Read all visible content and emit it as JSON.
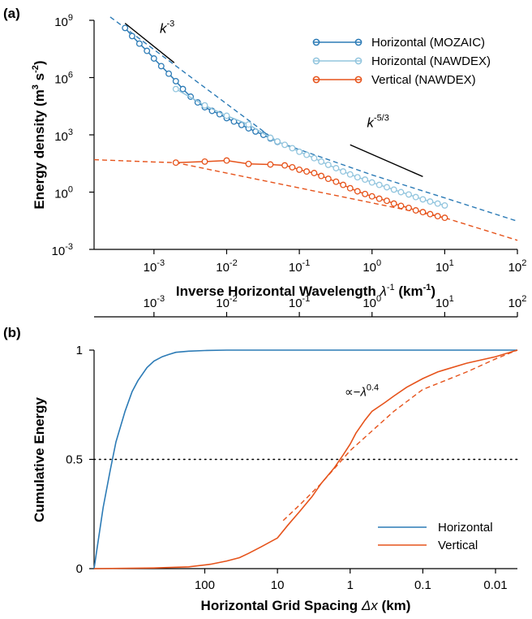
{
  "colors": {
    "mozaic": "#2c7bb6",
    "nawdex_h": "#92c5de",
    "nawdex_v": "#e6531b",
    "horizontal": "#2c7bb6",
    "vertical": "#e6531b"
  },
  "chart_data": [
    {
      "type": "line",
      "panel_label": "(a)",
      "xlabel_main": "Inverse Horizontal Wavelength ",
      "xlabel_sym": "λ",
      "xlabel_sup": "-1",
      "xlabel_unit": " (km",
      "xlabel_unit_sup": "-1",
      "xlabel_end": ")",
      "ylabel_main": "Energy density (m",
      "ylabel_sup1": "3",
      "ylabel_mid": " s",
      "ylabel_sup2": "-2",
      "ylabel_end": ")",
      "xscale": "log",
      "yscale": "log",
      "xlim": [
        0.00015,
        100
      ],
      "ylim": [
        0.001,
        1000000000
      ],
      "xticks": [
        {
          "base": "10",
          "exp": "-3",
          "v": 0.001
        },
        {
          "base": "10",
          "exp": "-2",
          "v": 0.01
        },
        {
          "base": "10",
          "exp": "-1",
          "v": 0.1
        },
        {
          "base": "10",
          "exp": "0",
          "v": 1
        },
        {
          "base": "10",
          "exp": "1",
          "v": 10
        },
        {
          "base": "10",
          "exp": "2",
          "v": 100
        }
      ],
      "yticks": [
        {
          "base": "10",
          "exp": "-3",
          "v": 0.001
        },
        {
          "base": "10",
          "exp": "0",
          "v": 1
        },
        {
          "base": "10",
          "exp": "3",
          "v": 1000
        },
        {
          "base": "10",
          "exp": "6",
          "v": 1000000
        },
        {
          "base": "10",
          "exp": "9",
          "v": 1000000000
        }
      ],
      "legend_position": "top-right",
      "series": [
        {
          "name": "Horizontal (MOZAIC)",
          "color": "#2c7bb6",
          "marker": "circle",
          "x": [
            0.0004,
            0.0005,
            0.00063,
            0.0008,
            0.001,
            0.00126,
            0.0016,
            0.002,
            0.0025,
            0.0032,
            0.004,
            0.005,
            0.0063,
            0.008,
            0.01,
            0.0126,
            0.016,
            0.02,
            0.025,
            0.032,
            0.04,
            0.05
          ],
          "y": [
            400000000,
            150000000,
            60000000,
            25000000,
            10000000,
            4000000,
            1600000,
            650000,
            250000,
            100000,
            50000,
            28000,
            18000,
            12000,
            7500,
            5000,
            3300,
            2200,
            1500,
            1000,
            650,
            430
          ]
        },
        {
          "name": "Horizontal (NAWDEX)",
          "color": "#92c5de",
          "marker": "circle",
          "x": [
            0.002,
            0.005,
            0.01,
            0.02,
            0.04,
            0.05,
            0.063,
            0.08,
            0.1,
            0.126,
            0.16,
            0.2,
            0.25,
            0.32,
            0.4,
            0.5,
            0.63,
            0.8,
            1.0,
            1.26,
            1.6,
            2.0,
            2.5,
            3.2,
            4.0,
            5.0,
            6.3,
            8.0,
            10.0
          ],
          "y": [
            250000,
            35000,
            10000,
            3500,
            700,
            450,
            300,
            200,
            130,
            90,
            60,
            40,
            27,
            18,
            12,
            8.5,
            6,
            4.5,
            3.2,
            2.4,
            1.8,
            1.35,
            1.0,
            0.75,
            0.55,
            0.42,
            0.32,
            0.25,
            0.2
          ]
        },
        {
          "name": "Vertical (NAWDEX)",
          "color": "#e6531b",
          "marker": "circle",
          "x": [
            0.002,
            0.005,
            0.01,
            0.02,
            0.04,
            0.063,
            0.08,
            0.1,
            0.126,
            0.16,
            0.2,
            0.25,
            0.32,
            0.4,
            0.5,
            0.63,
            0.8,
            1.0,
            1.26,
            1.6,
            2.0,
            2.5,
            3.2,
            4.0,
            5.0,
            6.3,
            8.0,
            10.0
          ],
          "y": [
            35,
            40,
            45,
            30,
            28,
            25,
            20,
            15,
            12,
            10,
            7,
            5,
            3.5,
            2.4,
            1.6,
            1.1,
            0.8,
            0.6,
            0.45,
            0.35,
            0.25,
            0.19,
            0.15,
            0.11,
            0.09,
            0.07,
            0.055,
            0.045
          ]
        }
      ],
      "extrapolations": [
        {
          "of": "Horizontal (MOZAIC)",
          "color": "#2c7bb6",
          "x": [
            0.00025,
            0.0004,
            0.05,
            0.1,
            1,
            10,
            100
          ],
          "y": [
            1500000000,
            400000000,
            430,
            170,
            8,
            0.5,
            0.03
          ]
        },
        {
          "of": "Vertical (NAWDEX)",
          "color": "#e6531b",
          "x": [
            0.00015,
            0.001,
            0.002,
            10,
            100
          ],
          "y": [
            50,
            38,
            35,
            0.045,
            0.003
          ]
        }
      ],
      "reference_slopes": [
        {
          "label_base": "k",
          "label_exp": "-3",
          "x": [
            0.0004,
            0.0019
          ],
          "y": [
            700000000,
            6000000
          ],
          "label_x": 0.0012,
          "label_y": 220000000
        },
        {
          "label_base": "k",
          "label_exp": "-5/3",
          "x": [
            0.5,
            5
          ],
          "y": [
            300,
            6.5
          ],
          "label_x": 0.85,
          "label_y": 2500
        }
      ]
    },
    {
      "type": "line",
      "panel_label": "(b)",
      "xlabel_main": "Horizontal Grid Spacing ",
      "xlabel_sym": "Δx",
      "xlabel_end": " (km)",
      "ylabel": "Cumulative Energy",
      "xscale": "log",
      "ylim": [
        0,
        1
      ],
      "top_axis_ticks": [
        {
          "base": "10",
          "exp": "-3",
          "v": 0.001
        },
        {
          "base": "10",
          "exp": "-2",
          "v": 0.01
        },
        {
          "base": "10",
          "exp": "-1",
          "v": 0.1
        },
        {
          "base": "10",
          "exp": "0",
          "v": 1
        },
        {
          "base": "10",
          "exp": "1",
          "v": 10
        },
        {
          "base": "10",
          "exp": "2",
          "v": 100
        }
      ],
      "bottom_axis_ticks": [
        {
          "label": "100",
          "v": 0.005
        },
        {
          "label": "10",
          "v": 0.05
        },
        {
          "label": "1",
          "v": 0.5
        },
        {
          "label": "0.1",
          "v": 5
        },
        {
          "label": "0.01",
          "v": 50
        }
      ],
      "yticks": [
        {
          "label": "0",
          "v": 0
        },
        {
          "label": "0.5",
          "v": 0.5
        },
        {
          "label": "1",
          "v": 1
        }
      ],
      "hline": 0.5,
      "legend_position": "bottom-right",
      "series": [
        {
          "name": "Horizontal",
          "color": "#2c7bb6",
          "x": [
            0.00015,
            0.0002,
            0.00025,
            0.0003,
            0.0004,
            0.0005,
            0.0006,
            0.0008,
            0.001,
            0.0013,
            0.0016,
            0.002,
            0.003,
            0.005,
            0.01,
            0.1,
            100
          ],
          "y": [
            0,
            0.28,
            0.45,
            0.58,
            0.72,
            0.81,
            0.86,
            0.92,
            0.95,
            0.97,
            0.98,
            0.99,
            0.995,
            0.998,
            1,
            1,
            1
          ]
        },
        {
          "name": "Vertical",
          "color": "#e6531b",
          "x": [
            0.00015,
            0.001,
            0.003,
            0.006,
            0.01,
            0.015,
            0.02,
            0.03,
            0.05,
            0.07,
            0.1,
            0.15,
            0.2,
            0.3,
            0.4,
            0.5,
            0.6,
            0.8,
            1,
            1.5,
            2,
            3,
            5,
            8,
            10,
            20,
            50,
            100
          ],
          "y": [
            0,
            0.003,
            0.008,
            0.02,
            0.035,
            0.05,
            0.07,
            0.1,
            0.14,
            0.2,
            0.26,
            0.33,
            0.39,
            0.46,
            0.52,
            0.57,
            0.62,
            0.68,
            0.72,
            0.76,
            0.79,
            0.83,
            0.87,
            0.9,
            0.91,
            0.94,
            0.97,
            1
          ]
        }
      ],
      "fit": {
        "label_prefix": "∝−",
        "label_sym": "λ",
        "label_exp": "0.4",
        "color": "#e6531b",
        "label_x": 0.42,
        "label_y": 0.79,
        "x": [
          0.06,
          0.1,
          0.2,
          0.5,
          1,
          2,
          5,
          10,
          20,
          50,
          100
        ],
        "y": [
          0.22,
          0.29,
          0.39,
          0.54,
          0.63,
          0.72,
          0.82,
          0.86,
          0.9,
          0.96,
          1
        ]
      }
    }
  ]
}
